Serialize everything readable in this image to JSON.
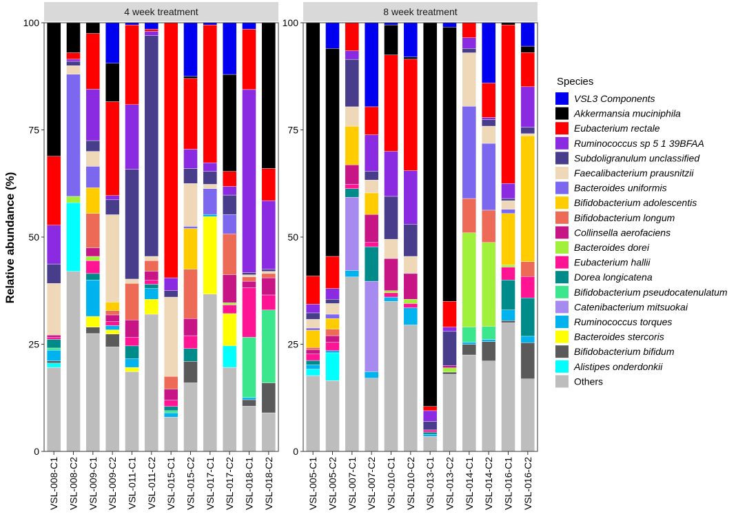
{
  "chart_data": {
    "type": "bar",
    "stacked": true,
    "ylabel": "Relative abundance (%)",
    "ylim": [
      0,
      100
    ],
    "yticks": [
      "0",
      "25",
      "50",
      "75",
      "100"
    ],
    "legend_title": "Species",
    "legend_position": "right",
    "series": [
      {
        "name": "VSL3 Components",
        "color": "#0000f0",
        "italic": true
      },
      {
        "name": "Akkermansia muciniphila",
        "color": "#000000",
        "italic": true
      },
      {
        "name": "Eubacterium rectale",
        "color": "#ff0000",
        "italic": true
      },
      {
        "name": "Ruminococcus sp 5 1 39BFAA",
        "color": "#8a2be2",
        "italic": true
      },
      {
        "name": "Subdoligranulum unclassified",
        "color": "#483d8b",
        "italic": true
      },
      {
        "name": "Faecalibacterium prausnitzii",
        "color": "#eed8b8",
        "italic": true
      },
      {
        "name": "Bacteroides uniformis",
        "color": "#7b68ee",
        "italic": true
      },
      {
        "name": "Bifidobacterium adolescentis",
        "color": "#ffcc00",
        "italic": true
      },
      {
        "name": "Bifidobacterium longum",
        "color": "#ec6a56",
        "italic": true
      },
      {
        "name": "Collinsella aerofaciens",
        "color": "#c71585",
        "italic": true
      },
      {
        "name": "Bacteroides dorei",
        "color": "#a0f03c",
        "italic": true
      },
      {
        "name": "Eubacterium hallii",
        "color": "#ff1493",
        "italic": true
      },
      {
        "name": "Dorea longicatena",
        "color": "#008b8b",
        "italic": true
      },
      {
        "name": "Bifidobacterium pseudocatenulatum",
        "color": "#3ce68c",
        "italic": true
      },
      {
        "name": "Catenibacterium mitsuokai",
        "color": "#a78af0",
        "italic": true
      },
      {
        "name": "Ruminococcus torques",
        "color": "#00b2ee",
        "italic": true
      },
      {
        "name": "Bacteroides stercoris",
        "color": "#ffff00",
        "italic": true
      },
      {
        "name": "Bifidobacterium bifidum",
        "color": "#5a5a5a",
        "italic": true
      },
      {
        "name": "Alistipes onderdonkii",
        "color": "#00ffff",
        "italic": true
      },
      {
        "name": "Others",
        "color": "#bdbdbd",
        "italic": false
      }
    ],
    "panels": [
      {
        "title": "4 week treatment",
        "samples": [
          {
            "label": "VSL-008-C1",
            "values": {
              "Others": 19.5,
              "Bifidobacterium bifidum": 0.5,
              "Alistipes onderdonkii": 1,
              "Ruminococcus torques": 2.5,
              "Dorea longicatena": 2,
              "Bifidobacterium pseudocatenulatum": 0.5,
              "Eubacterium hallii": 0.5,
              "Collinsella aerofaciens": 0.5,
              "Faecalibacterium prausnitzii": 12,
              "Subdoligranulum unclassified": 4.5,
              "Ruminococcus sp 5 1 39BFAA": 9,
              "Eubacterium rectale": 16,
              "Akkermansia muciniphila": 31
            }
          },
          {
            "label": "VSL-008-C2",
            "values": {
              "Others": 42,
              "Alistipes onderdonkii": 16,
              "Bacteroides dorei": 1.5,
              "Bacteroides uniformis": 28.5,
              "Faecalibacterium prausnitzii": 2,
              "Subdoligranulum unclassified": 1,
              "Ruminococcus sp 5 1 39BFAA": 0.5,
              "Eubacterium rectale": 1.5,
              "Akkermansia muciniphila": 7
            }
          },
          {
            "label": "VSL-009-C1",
            "values": {
              "Others": 27.5,
              "Bifidobacterium bifidum": 1.5,
              "Bacteroides stercoris": 2.5,
              "Ruminococcus torques": 8.5,
              "Dorea longicatena": 1.5,
              "Eubacterium hallii": 3,
              "Bacteroides dorei": 1,
              "Collinsella aerofaciens": 2,
              "Bifidobacterium longum": 8,
              "Bifidobacterium adolescentis": 6,
              "Bacteroides uniformis": 5,
              "Faecalibacterium prausnitzii": 3.5,
              "Subdoligranulum unclassified": 2.5,
              "Ruminococcus sp 5 1 39BFAA": 12,
              "Eubacterium rectale": 13,
              "Akkermansia muciniphila": 2.5,
              "VSL3 Components": 0
            }
          },
          {
            "label": "VSL-009-C2",
            "values": {
              "Others": 24.5,
              "Bifidobacterium bifidum": 3,
              "Bacteroides stercoris": 1,
              "Ruminococcus torques": 1,
              "Eubacterium hallii": 1,
              "Collinsella aerofaciens": 1.5,
              "Bifidobacterium longum": 1,
              "Bifidobacterium adolescentis": 2,
              "Faecalibacterium prausnitzii": 20.5,
              "Subdoligranulum unclassified": 3.5,
              "Ruminococcus sp 5 1 39BFAA": 1,
              "Eubacterium rectale": 22,
              "Akkermansia muciniphila": 9,
              "VSL3 Components": 9.5
            }
          },
          {
            "label": "VSL-011-C1",
            "values": {
              "Others": 18.5,
              "Bacteroides stercoris": 1,
              "Ruminococcus torques": 2,
              "Dorea longicatena": 3,
              "Eubacterium hallii": 2,
              "Collinsella aerofaciens": 4,
              "Bifidobacterium longum": 8.5,
              "Faecalibacterium prausnitzii": 1,
              "Subdoligranulum unclassified": 25.5,
              "Ruminococcus sp 5 1 39BFAA": 15,
              "Eubacterium rectale": 18.5,
              "VSL3 Components": 0.5
            }
          },
          {
            "label": "VSL-011-C2",
            "values": {
              "Others": 32,
              "Bacteroides stercoris": 3.5,
              "Ruminococcus torques": 2.5,
              "Dorea longicatena": 1,
              "Eubacterium hallii": 1,
              "Collinsella aerofaciens": 2,
              "Bifidobacterium longum": 2.5,
              "Faecalibacterium prausnitzii": 1,
              "Subdoligranulum unclassified": 51.5,
              "Ruminococcus sp 5 1 39BFAA": 1,
              "Eubacterium rectale": 0.5,
              "VSL3 Components": 1.5
            }
          },
          {
            "label": "VSL-015-C1",
            "values": {
              "Others": 8,
              "Bifidobacterium pseudocatenulatum": 0.5,
              "Ruminococcus torques": 1,
              "Dorea longicatena": 1,
              "Eubacterium hallii": 1.5,
              "Collinsella aerofaciens": 2.5,
              "Bifidobacterium longum": 3,
              "Faecalibacterium prausnitzii": 18.5,
              "Subdoligranulum unclassified": 1.5,
              "Ruminococcus sp 5 1 39BFAA": 3,
              "Eubacterium rectale": 59.5
            }
          },
          {
            "label": "VSL-015-C2",
            "values": {
              "Others": 16,
              "Bifidobacterium bifidum": 5,
              "Dorea longicatena": 3,
              "Eubacterium hallii": 3,
              "Collinsella aerofaciens": 4,
              "Bifidobacterium longum": 11.5,
              "Bifidobacterium adolescentis": 9.5,
              "Bacteroides uniformis": 0.5,
              "Faecalibacterium prausnitzii": 10,
              "Subdoligranulum unclassified": 3.5,
              "Ruminococcus sp 5 1 39BFAA": 4.5,
              "Eubacterium rectale": 16.5,
              "Akkermansia muciniphila": 0.5,
              "VSL3 Components": 12.5
            }
          },
          {
            "label": "VSL-017-C1",
            "values": {
              "Others": 36.5,
              "Bacteroides stercoris": 18,
              "Ruminococcus torques": 0.5,
              "Faecalibacterium prausnitzii": 1,
              "Bacteroides uniformis": 6,
              "Subdoligranulum unclassified": 3,
              "Ruminococcus sp 5 1 39BFAA": 2,
              "Eubacterium rectale": 32,
              "VSL3 Components": 0.5
            }
          },
          {
            "label": "VSL-017-C2",
            "values": {
              "Others": 19.5,
              "Alistipes onderdonkii": 5,
              "Bacteroides stercoris": 7.5,
              "Bacteroides dorei": 0.5,
              "Eubacterium hallii": 2,
              "Collinsella aerofaciens": 6.5,
              "Bifidobacterium longum": 9.5,
              "Bacteroides uniformis": 4.5,
              "Subdoligranulum unclassified": 4.5,
              "Ruminococcus sp 5 1 39BFAA": 2,
              "Eubacterium rectale": 3.5,
              "Akkermansia muciniphila": 22.5,
              "VSL3 Components": 12
            }
          },
          {
            "label": "VSL-018-C1",
            "values": {
              "Others": 10.5,
              "Bifidobacterium bifidum": 1.5,
              "Ruminococcus torques": 0.5,
              "Bifidobacterium pseudocatenulatum": 14,
              "Eubacterium hallii": 11.5,
              "Collinsella aerofaciens": 1.5,
              "Bifidobacterium longum": 1,
              "Faecalibacterium prausnitzii": 0.5,
              "Subdoligranulum unclassified": 0.5,
              "Ruminococcus sp 5 1 39BFAA": 42.5,
              "Eubacterium rectale": 14,
              "VSL3 Components": 1.5
            }
          },
          {
            "label": "VSL-018-C2",
            "values": {
              "Others": 9,
              "Bifidobacterium bifidum": 7,
              "Bifidobacterium pseudocatenulatum": 17,
              "Eubacterium hallii": 3.5,
              "Collinsella aerofaciens": 4,
              "Bifidobacterium longum": 1,
              "Faecalibacterium prausnitzii": 0.5,
              "Subdoligranulum unclassified": 0.5,
              "Ruminococcus sp 5 1 39BFAA": 16,
              "Eubacterium rectale": 7.5,
              "Akkermansia muciniphila": 34
            }
          }
        ]
      },
      {
        "title": "8 week treatment",
        "samples": [
          {
            "label": "VSL-005-C1",
            "values": {
              "Others": 17.5,
              "Alistipes onderdonkii": 1.5,
              "Ruminococcus torques": 1,
              "Dorea longicatena": 1,
              "Eubacterium hallii": 1.5,
              "Collinsella aerofaciens": 1,
              "Bifidobacterium longum": 0.5,
              "Bifidobacterium adolescentis": 4,
              "Faecalibacterium prausnitzii": 2,
              "Bacteroides uniformis": 0.5,
              "Subdoligranulum unclassified": 1.5,
              "Ruminococcus sp 5 1 39BFAA": 2,
              "Eubacterium rectale": 6.5,
              "Akkermansia muciniphila": 58.5
            }
          },
          {
            "label": "VSL-005-C2",
            "values": {
              "Others": 16.5,
              "Alistipes onderdonkii": 6.5,
              "Ruminococcus torques": 0.5,
              "Eubacterium hallii": 2,
              "Collinsella aerofaciens": 1.5,
              "Bifidobacterium longum": 1.5,
              "Bifidobacterium adolescentis": 2.5,
              "Faecalibacterium prausnitzii": 2.5,
              "Subdoligranulum unclassified": 1,
              "Bacteroides uniformis": 1,
              "Ruminococcus sp 5 1 39BFAA": 2.5,
              "Eubacterium rectale": 7.5,
              "Akkermansia muciniphila": 48.5,
              "VSL3 Components": 6
            }
          },
          {
            "label": "VSL-007-C1",
            "values": {
              "Others": 40.5,
              "Ruminococcus torques": 1.5,
              "Catenibacterium mitsuokai": 17,
              "Dorea longicatena": 2,
              "Eubacterium hallii": 1,
              "Collinsella aerofaciens": 4.5,
              "Bifidobacterium adolescentis": 9,
              "Faecalibacterium prausnitzii": 4.5,
              "Subdoligranulum unclassified": 11,
              "Ruminococcus sp 5 1 39BFAA": 2,
              "Eubacterium rectale": 6.5
            }
          },
          {
            "label": "VSL-007-C2",
            "values": {
              "Others": 17,
              "Ruminococcus torques": 1.5,
              "Catenibacterium mitsuokai": 21,
              "Dorea longicatena": 8,
              "Eubacterium hallii": 1,
              "Collinsella aerofaciens": 6.5,
              "Bifidobacterium adolescentis": 5,
              "Faecalibacterium prausnitzii": 3,
              "Subdoligranulum unclassified": 2,
              "Ruminococcus sp 5 1 39BFAA": 8.5,
              "Eubacterium rectale": 6.5,
              "VSL3 Components": 19.5
            }
          },
          {
            "label": "VSL-010-C1",
            "values": {
              "Others": 35,
              "Ruminococcus torques": 1,
              "Eubacterium hallii": 1,
              "Bacteroides dorei": 0.5,
              "Collinsella aerofaciens": 7.5,
              "Faecalibacterium prausnitzii": 4.5,
              "Subdoligranulum unclassified": 10,
              "Ruminococcus sp 5 1 39BFAA": 10.5,
              "Eubacterium rectale": 22.5,
              "Akkermansia muciniphila": 7,
              "VSL3 Components": 0.5
            }
          },
          {
            "label": "VSL-010-C2",
            "values": {
              "Others": 29.5,
              "Ruminococcus torques": 4,
              "Bacteroides dorei": 1,
              "Eubacterium hallii": 1,
              "Collinsella aerofaciens": 6,
              "Faecalibacterium prausnitzii": 4,
              "Subdoligranulum unclassified": 7.5,
              "Ruminococcus sp 5 1 39BFAA": 12.5,
              "Eubacterium rectale": 26,
              "Akkermansia muciniphila": 0.5,
              "VSL3 Components": 8
            }
          },
          {
            "label": "VSL-013-C1",
            "values": {
              "Others": 3.5,
              "Ruminococcus torques": 0.5,
              "Dorea longicatena": 0.5,
              "Eubacterium hallii": 0.5,
              "Subdoligranulum unclassified": 2,
              "Ruminococcus sp 5 1 39BFAA": 2.5,
              "Eubacterium rectale": 1,
              "Akkermansia muciniphila": 89.5
            }
          },
          {
            "label": "VSL-013-C2",
            "values": {
              "Others": 18,
              "Bifidobacterium bifidum": 0.5,
              "Bacteroides dorei": 1,
              "Collinsella aerofaciens": 0.5,
              "Subdoligranulum unclassified": 8,
              "Ruminococcus sp 5 1 39BFAA": 1,
              "Eubacterium rectale": 6,
              "Akkermansia muciniphila": 64,
              "VSL3 Components": 1
            }
          },
          {
            "label": "VSL-014-C1",
            "values": {
              "Others": 22.5,
              "Bifidobacterium bifidum": 2.5,
              "Ruminococcus torques": 0.5,
              "Bifidobacterium pseudocatenulatum": 3.5,
              "Bacteroides dorei": 22,
              "Bifidobacterium longum": 8,
              "Bacteroides uniformis": 21.5,
              "Faecalibacterium prausnitzii": 12.5,
              "Subdoligranulum unclassified": 1,
              "Ruminococcus sp 5 1 39BFAA": 2.5,
              "Eubacterium rectale": 3.5
            }
          },
          {
            "label": "VSL-014-C2",
            "values": {
              "Others": 21,
              "Bifidobacterium bifidum": 4.5,
              "Ruminococcus torques": 0.5,
              "Bifidobacterium pseudocatenulatum": 3,
              "Bacteroides dorei": 19.5,
              "Bifidobacterium longum": 7.5,
              "Bacteroides uniformis": 15.5,
              "Faecalibacterium prausnitzii": 4,
              "Subdoligranulum unclassified": 1.5,
              "Ruminococcus sp 5 1 39BFAA": 0.5,
              "Eubacterium rectale": 8,
              "VSL3 Components": 14
            }
          },
          {
            "label": "VSL-016-C1",
            "values": {
              "Others": 30,
              "Bifidobacterium bifidum": 0.5,
              "Ruminococcus torques": 2.5,
              "Dorea longicatena": 7,
              "Eubacterium hallii": 3,
              "Bacteroides dorei": 0.5,
              "Bifidobacterium adolescentis": 12,
              "Faecalibacterium prausnitzii": 2,
              "Bacteroides uniformis": 1,
              "Subdoligranulum unclassified": 0.5,
              "Ruminococcus sp 5 1 39BFAA": 3.5,
              "Eubacterium rectale": 37,
              "Akkermansia muciniphila": 0.5
            }
          },
          {
            "label": "VSL-016-C2",
            "values": {
              "Others": 17,
              "Bifidobacterium bifidum": 8.5,
              "Ruminococcus torques": 1.5,
              "Dorea longicatena": 9,
              "Eubacterium hallii": 5,
              "Bifidobacterium longum": 3.5,
              "Bifidobacterium adolescentis": 29.5,
              "Faecalibacterium prausnitzii": 0.5,
              "Subdoligranulum unclassified": 1.5,
              "Ruminococcus sp 5 1 39BFAA": 9.5,
              "Eubacterium rectale": 8,
              "Akkermansia muciniphila": 1.5,
              "VSL3 Components": 5.5
            }
          }
        ]
      }
    ]
  }
}
